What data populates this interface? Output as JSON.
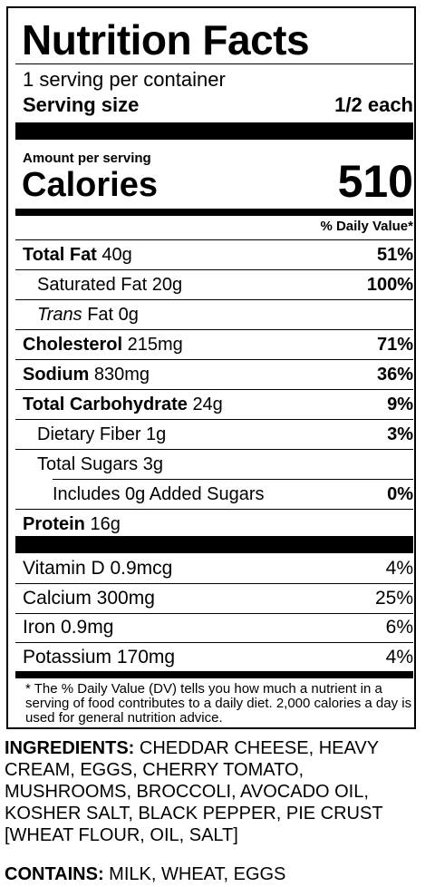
{
  "title": "Nutrition Facts",
  "servings_per_container": "1 serving per container",
  "serving_size": {
    "label": "Serving size",
    "value": "1/2 each"
  },
  "amount_per_serving": "Amount per serving",
  "calories": {
    "label": "Calories",
    "value": "510"
  },
  "dv_header": "% Daily Value*",
  "nutrients": [
    {
      "name": "Total Fat",
      "amount": "40g",
      "dv": "51%"
    },
    {
      "name": "Saturated Fat",
      "amount": "20g",
      "dv": "100%"
    },
    {
      "name_italic": "Trans",
      "name": "Fat",
      "amount": "0g",
      "dv": ""
    },
    {
      "name": "Cholesterol",
      "amount": "215mg",
      "dv": "71%"
    },
    {
      "name": "Sodium",
      "amount": "830mg",
      "dv": "36%"
    },
    {
      "name": "Total Carbohydrate",
      "amount": "24g",
      "dv": "9%"
    },
    {
      "name": "Dietary Fiber",
      "amount": "1g",
      "dv": "3%"
    },
    {
      "name": "Total Sugars",
      "amount": "3g",
      "dv": ""
    },
    {
      "name": "Includes 0g Added Sugars",
      "amount": "",
      "dv": "0%"
    },
    {
      "name": "Protein",
      "amount": "16g",
      "dv": ""
    }
  ],
  "vitamins": [
    {
      "name": "Vitamin D 0.9mcg",
      "dv": "4%"
    },
    {
      "name": "Calcium 300mg",
      "dv": "25%"
    },
    {
      "name": "Iron 0.9mg",
      "dv": "6%"
    },
    {
      "name": "Potassium 170mg",
      "dv": "4%"
    }
  ],
  "footnote": "* The % Daily Value (DV) tells you how much a nutrient in a serving of food contributes to a daily diet. 2,000 calories a day is used for general nutrition advice.",
  "ingredients": {
    "label": "INGREDIENTS:",
    "text": " CHEDDAR CHEESE, HEAVY CREAM, EGGS, CHERRY TOMATO, MUSHROOMS, BROCCOLI, AVOCADO OIL, KOSHER SALT, BLACK PEPPER, PIE CRUST [WHEAT FLOUR, OIL, SALT]"
  },
  "contains": {
    "label": "CONTAINS:",
    "text": " MILK, WHEAT, EGGS"
  }
}
